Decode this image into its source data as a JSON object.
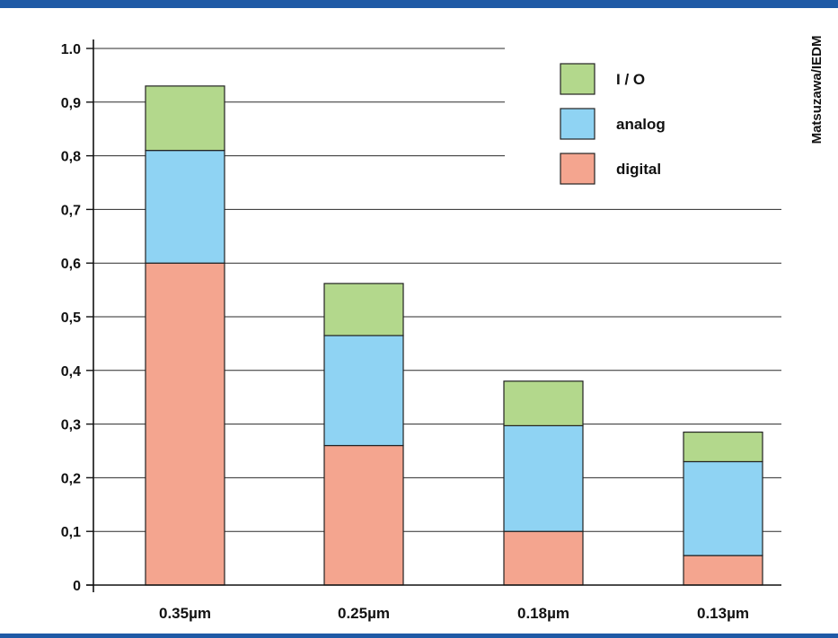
{
  "credit": "Matsuzawa/IEDM",
  "chart_data": {
    "type": "bar",
    "stacked": true,
    "categories": [
      "0.35µm",
      "0.25µm",
      "0.18µm",
      "0.13µm"
    ],
    "series": [
      {
        "name": "digital",
        "color": "#f4a58f",
        "values": [
          0.6,
          0.26,
          0.1,
          0.055
        ]
      },
      {
        "name": "analog",
        "color": "#8fd3f3",
        "values": [
          0.21,
          0.205,
          0.197,
          0.175
        ]
      },
      {
        "name": "I / O",
        "color": "#b3d88c",
        "values": [
          0.12,
          0.097,
          0.083,
          0.055
        ]
      }
    ],
    "legend_order": [
      "I / O",
      "analog",
      "digital"
    ],
    "yticks": [
      "0",
      "0,1",
      "0,2",
      "0,3",
      "0,4",
      "0,5",
      "0,6",
      "0,7",
      "0,8",
      "0,9",
      "1.0"
    ],
    "ylim": [
      0,
      1.0
    ],
    "grid": true,
    "legend_position": "top-right",
    "title": "",
    "xlabel": "",
    "ylabel": ""
  }
}
